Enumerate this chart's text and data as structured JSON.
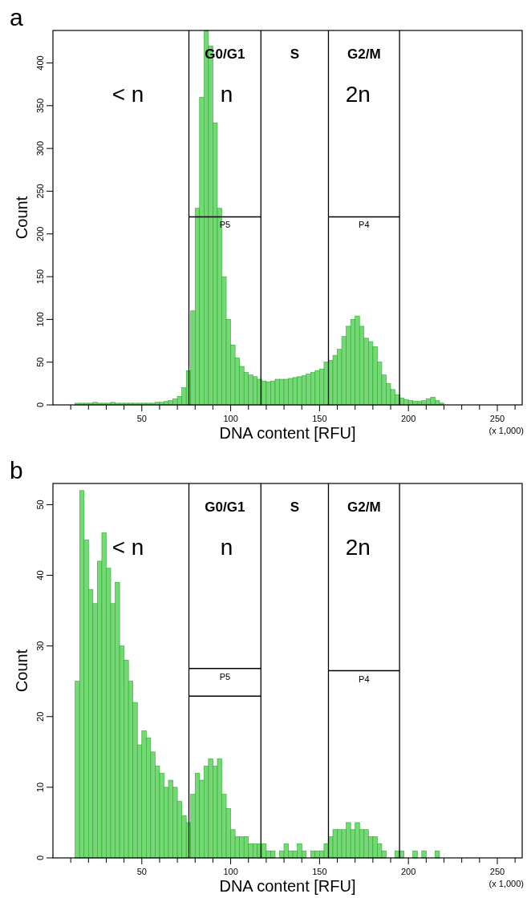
{
  "chart_data": [
    {
      "type": "histogram",
      "title": "a",
      "xlabel": "DNA content [RFU]",
      "ylabel": "Count",
      "color": "#77d677",
      "bins": [
        10,
        12.5,
        15,
        17.5,
        20,
        22.5,
        25,
        27.5,
        30,
        32.5,
        35,
        37.5,
        40,
        42.5,
        45,
        47.5,
        50,
        52.5,
        55,
        57.5,
        60,
        62.5,
        65,
        67.5,
        70,
        72.5,
        75,
        77.5,
        80,
        82.5,
        85,
        87.5,
        90,
        92.5,
        95,
        97.5,
        100,
        102.5,
        105,
        107.5,
        110,
        112.5,
        115,
        117.5,
        120,
        122.5,
        125,
        127.5,
        130,
        132.5,
        135,
        137.5,
        140,
        142.5,
        145,
        147.5,
        150,
        152.5,
        155,
        157.5,
        160,
        162.5,
        165,
        167.5,
        170,
        172.5,
        175,
        177.5,
        180,
        182.5,
        185,
        187.5,
        190,
        192.5,
        195,
        197.5,
        200,
        202.5,
        205,
        207.5,
        210,
        212.5,
        215,
        217.5,
        220
      ],
      "values": [
        0,
        2,
        2,
        2,
        2,
        3,
        2,
        2,
        2,
        3,
        2,
        2,
        2,
        2,
        2,
        2,
        2,
        2,
        2,
        3,
        3,
        4,
        5,
        7,
        10,
        20,
        40,
        110,
        230,
        360,
        438,
        420,
        330,
        230,
        150,
        100,
        70,
        55,
        45,
        38,
        35,
        33,
        30,
        28,
        27,
        28,
        30,
        30,
        30,
        31,
        32,
        33,
        34,
        36,
        38,
        40,
        42,
        50,
        52,
        58,
        65,
        80,
        92,
        100,
        104,
        92,
        78,
        74,
        68,
        50,
        35,
        25,
        18,
        12,
        8,
        6,
        5,
        4,
        4,
        5,
        7,
        9,
        5,
        2
      ],
      "xlim": [
        0,
        264
      ],
      "ylim": [
        0,
        438
      ],
      "xticks": [
        {
          "value": 10,
          "label": null
        },
        {
          "value": 20,
          "label": null
        },
        {
          "value": 30,
          "label": null
        },
        {
          "value": 40,
          "label": null
        },
        50,
        {
          "value": 60,
          "label": null
        },
        {
          "value": 70,
          "label": null
        },
        {
          "value": 80,
          "label": null
        },
        {
          "value": 90,
          "label": null
        },
        100,
        {
          "value": 110,
          "label": null
        },
        {
          "value": 120,
          "label": null
        },
        {
          "value": 130,
          "label": null
        },
        {
          "value": 140,
          "label": null
        },
        150,
        {
          "value": 160,
          "label": null
        },
        {
          "value": 170,
          "label": null
        },
        {
          "value": 180,
          "label": null
        },
        {
          "value": 190,
          "label": null
        },
        200,
        {
          "value": 210,
          "label": null
        },
        {
          "value": 220,
          "label": null
        },
        {
          "value": 230,
          "label": null
        },
        {
          "value": 240,
          "label": null
        },
        250,
        {
          "value": 260,
          "label": null
        }
      ],
      "yticks": [
        0,
        50,
        100,
        150,
        200,
        250,
        300,
        350,
        400
      ],
      "ref_lines": [
        {
          "axis": "x",
          "value": 76.5,
          "label": "G0/G1"
        },
        {
          "axis": "x",
          "value": 117,
          "label": "S"
        },
        {
          "axis": "x",
          "value": 155,
          "label": "G2/M"
        },
        {
          "axis": "x",
          "value": 195,
          "label": null
        }
      ],
      "series": [
        {
          "type": "line",
          "name": "P5",
          "color": "#000000",
          "x": [
            76.5,
            117
          ],
          "values": [
            220,
            220
          ]
        },
        {
          "type": "line",
          "name": "P4",
          "color": "#000000",
          "x": [
            155,
            195
          ],
          "values": [
            220,
            220
          ]
        }
      ],
      "annotations": [
        "< n",
        "n",
        "2n",
        "(x 1,000)"
      ]
    },
    {
      "type": "histogram",
      "title": "b",
      "xlabel": "DNA content [RFU]",
      "ylabel": "Count",
      "color": "#77d677",
      "bins": [
        10,
        12.5,
        15,
        17.5,
        20,
        22.5,
        25,
        27.5,
        30,
        32.5,
        35,
        37.5,
        40,
        42.5,
        45,
        47.5,
        50,
        52.5,
        55,
        57.5,
        60,
        62.5,
        65,
        67.5,
        70,
        72.5,
        75,
        77.5,
        80,
        82.5,
        85,
        87.5,
        90,
        92.5,
        95,
        97.5,
        100,
        102.5,
        105,
        107.5,
        110,
        112.5,
        115,
        117.5,
        120,
        122.5,
        125,
        127.5,
        130,
        132.5,
        135,
        137.5,
        140,
        142.5,
        145,
        147.5,
        150,
        152.5,
        155,
        157.5,
        160,
        162.5,
        165,
        167.5,
        170,
        172.5,
        175,
        177.5,
        180,
        182.5,
        185,
        187.5,
        190,
        192.5,
        195,
        197.5,
        200,
        202.5,
        205,
        207.5,
        210,
        212.5,
        215,
        217.5,
        220
      ],
      "values": [
        0,
        25,
        52,
        45,
        38,
        36,
        42,
        46,
        41,
        36,
        39,
        30,
        28,
        25,
        22,
        16,
        18,
        17,
        15,
        13,
        12,
        10,
        11,
        10,
        8,
        6,
        5,
        9,
        12,
        11,
        13,
        14,
        13,
        14,
        9,
        7,
        4,
        3,
        3,
        3,
        2,
        2,
        2,
        2,
        1,
        1,
        0,
        1,
        2,
        1,
        1,
        2,
        1,
        0,
        1,
        1,
        1,
        2,
        3,
        4,
        4,
        4,
        5,
        4,
        5,
        4,
        4,
        3,
        3,
        2,
        1,
        0,
        0,
        1,
        1,
        0,
        0,
        1,
        0,
        1,
        0,
        0,
        1,
        0
      ],
      "xlim": [
        0,
        264
      ],
      "ylim": [
        0,
        53
      ],
      "xticks": [
        {
          "value": 10,
          "label": null
        },
        {
          "value": 20,
          "label": null
        },
        {
          "value": 30,
          "label": null
        },
        {
          "value": 40,
          "label": null
        },
        50,
        {
          "value": 60,
          "label": null
        },
        {
          "value": 70,
          "label": null
        },
        {
          "value": 80,
          "label": null
        },
        {
          "value": 90,
          "label": null
        },
        100,
        {
          "value": 110,
          "label": null
        },
        {
          "value": 120,
          "label": null
        },
        {
          "value": 130,
          "label": null
        },
        {
          "value": 140,
          "label": null
        },
        150,
        {
          "value": 160,
          "label": null
        },
        {
          "value": 170,
          "label": null
        },
        {
          "value": 180,
          "label": null
        },
        {
          "value": 190,
          "label": null
        },
        200,
        {
          "value": 210,
          "label": null
        },
        {
          "value": 220,
          "label": null
        },
        {
          "value": 230,
          "label": null
        },
        {
          "value": 240,
          "label": null
        },
        250,
        {
          "value": 260,
          "label": null
        }
      ],
      "yticks": [
        0,
        10,
        20,
        30,
        40,
        50
      ],
      "ref_lines": [
        {
          "axis": "x",
          "value": 76.5,
          "label": "G0/G1"
        },
        {
          "axis": "x",
          "value": 117,
          "label": "S"
        },
        {
          "axis": "x",
          "value": 155,
          "label": "G2/M"
        },
        {
          "axis": "x",
          "value": 195,
          "label": null
        }
      ],
      "series": [
        {
          "type": "line",
          "name": "P5",
          "color": "#000000",
          "x": [
            76.5,
            117
          ],
          "values": [
            26.8,
            26.8
          ]
        },
        {
          "type": "line",
          "color": "#000000",
          "x": [
            76.5,
            117
          ],
          "values": [
            22.9,
            22.9
          ]
        },
        {
          "type": "line",
          "name": "P4",
          "color": "#000000",
          "x": [
            155,
            195
          ],
          "values": [
            26.5,
            26.5
          ]
        }
      ],
      "annotations": [
        "< n",
        "n",
        "2n",
        "(x 1,000)"
      ]
    }
  ]
}
